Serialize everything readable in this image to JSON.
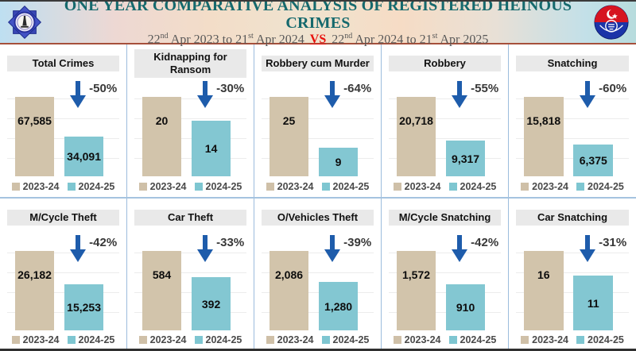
{
  "header": {
    "title": "ONE YEAR COMPARATIVE ANALYSIS OF REGISTERED HEINOUS CRIMES",
    "subtitle": {
      "seg1": "22",
      "sup1": "nd",
      "seg2": " Apr 2023 to ",
      "seg3": "21",
      "sup2": "st",
      "seg4": " Apr 2024",
      "vs": "VS",
      "seg5": "22",
      "sup3": "nd",
      "seg6": " Apr 2024 to ",
      "seg7": "21",
      "sup4": "st",
      "seg8": " Apr 2025"
    },
    "left_logo": "police-star-badge-icon",
    "right_logo": "punjab-police-badge-icon"
  },
  "legend": {
    "series1": "2023-24",
    "series2": "2024-25"
  },
  "colors": {
    "title_teal": "#15696d",
    "vs_red": "#e8100c",
    "bar_2023": "#d2c4ab",
    "bar_2024": "#83c7d2",
    "arrow_blue": "#1e5cab",
    "panel_title_bg": "#e9e9e9",
    "separator_blue": "#9cbcdd",
    "header_divider_brown": "#a6503b"
  },
  "chart_data": [
    {
      "type": "bar",
      "title": "Total Crimes",
      "categories": [
        "2023-24",
        "2024-25"
      ],
      "values": [
        67585,
        34091
      ],
      "value_labels": [
        "67,585",
        "34,091"
      ],
      "change": "-50%"
    },
    {
      "type": "bar",
      "title": "Kidnapping for Ransom",
      "categories": [
        "2023-24",
        "2024-25"
      ],
      "values": [
        20,
        14
      ],
      "value_labels": [
        "20",
        "14"
      ],
      "change": "-30%"
    },
    {
      "type": "bar",
      "title": "Robbery cum Murder",
      "categories": [
        "2023-24",
        "2024-25"
      ],
      "values": [
        25,
        9
      ],
      "value_labels": [
        "25",
        "9"
      ],
      "change": "-64%"
    },
    {
      "type": "bar",
      "title": "Robbery",
      "categories": [
        "2023-24",
        "2024-25"
      ],
      "values": [
        20718,
        9317
      ],
      "value_labels": [
        "20,718",
        "9,317"
      ],
      "change": "-55%"
    },
    {
      "type": "bar",
      "title": "Snatching",
      "categories": [
        "2023-24",
        "2024-25"
      ],
      "values": [
        15818,
        6375
      ],
      "value_labels": [
        "15,818",
        "6,375"
      ],
      "change": "-60%"
    },
    {
      "type": "bar",
      "title": "M/Cycle Theft",
      "categories": [
        "2023-24",
        "2024-25"
      ],
      "values": [
        26182,
        15253
      ],
      "value_labels": [
        "26,182",
        "15,253"
      ],
      "change": "-42%"
    },
    {
      "type": "bar",
      "title": "Car Theft",
      "categories": [
        "2023-24",
        "2024-25"
      ],
      "values": [
        584,
        392
      ],
      "value_labels": [
        "584",
        "392"
      ],
      "change": "-33%"
    },
    {
      "type": "bar",
      "title": "O/Vehicles Theft",
      "categories": [
        "2023-24",
        "2024-25"
      ],
      "values": [
        2086,
        1280
      ],
      "value_labels": [
        "2,086",
        "1,280"
      ],
      "change": "-39%"
    },
    {
      "type": "bar",
      "title": "M/Cycle Snatching",
      "categories": [
        "2023-24",
        "2024-25"
      ],
      "values": [
        1572,
        910
      ],
      "value_labels": [
        "1,572",
        "910"
      ],
      "change": "-42%"
    },
    {
      "type": "bar",
      "title": "Car Snatching",
      "categories": [
        "2023-24",
        "2024-25"
      ],
      "values": [
        16,
        11
      ],
      "value_labels": [
        "16",
        "11"
      ],
      "change": "-31%"
    }
  ]
}
